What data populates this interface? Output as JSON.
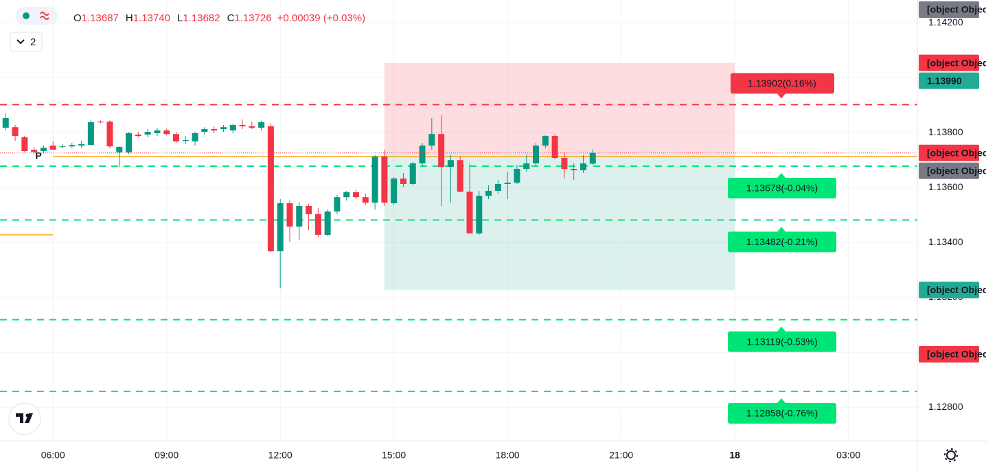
{
  "header": {
    "ohlc": [
      {
        "key": "O",
        "value": "1.13687"
      },
      {
        "key": "H",
        "value": "1.13740"
      },
      {
        "key": "L",
        "value": "1.13682"
      },
      {
        "key": "C",
        "value": "1.13726"
      }
    ],
    "change": "+0.00039 (+0.03%)",
    "collapse_count": "2"
  },
  "chart_data": {
    "type": "candlestick",
    "xlim": [
      4.6,
      28.82
    ],
    "ylim": [
      1.12678,
      1.14283
    ],
    "xticks": [
      {
        "value": 6,
        "label": "06:00"
      },
      {
        "value": 9,
        "label": "09:00"
      },
      {
        "value": 12,
        "label": "12:00"
      },
      {
        "value": 15,
        "label": "15:00"
      },
      {
        "value": 18,
        "label": "18:00"
      },
      {
        "value": 21,
        "label": "21:00"
      },
      {
        "value": 24,
        "label": "18"
      },
      {
        "value": 27,
        "label": "03:00"
      }
    ],
    "yticks": [
      {
        "value": 1.128,
        "label": "1.12800"
      },
      {
        "value": 1.13,
        "label": "1.13000"
      },
      {
        "value": 1.132,
        "label": "1.13200"
      },
      {
        "value": 1.134,
        "label": "1.13400"
      },
      {
        "value": 1.136,
        "label": "1.13600"
      },
      {
        "value": 1.138,
        "label": "1.13800"
      },
      {
        "value": 1.14,
        "label": "1.14000"
      },
      {
        "value": 1.142,
        "label": "1.14200"
      }
    ],
    "grid": true,
    "up_color": "#089981",
    "down_color": "#f23645",
    "x": [
      4.75,
      5,
      5.25,
      5.5,
      5.75,
      6,
      6.25,
      6.5,
      6.75,
      7,
      7.25,
      7.5,
      7.75,
      8,
      8.25,
      8.5,
      8.75,
      9,
      9.25,
      9.5,
      9.75,
      10,
      10.25,
      10.5,
      10.75,
      11,
      11.25,
      11.5,
      11.75,
      12,
      12.25,
      12.5,
      12.75,
      13,
      13.25,
      13.5,
      13.75,
      14,
      14.25,
      14.5,
      14.75,
      15,
      15.25,
      15.5,
      15.75,
      16,
      16.25,
      16.5,
      16.75,
      17,
      17.25,
      17.5,
      17.75,
      18,
      18.25,
      18.5,
      18.75,
      19,
      19.25,
      19.5,
      19.75,
      20,
      20.25
    ],
    "open": [
      1.13818,
      1.1382,
      1.13783,
      1.13738,
      1.13733,
      1.13753,
      1.13748,
      1.1375,
      1.13753,
      1.13755,
      1.1384,
      1.1384,
      1.13728,
      1.13728,
      1.13793,
      1.13793,
      1.13798,
      1.13808,
      1.13795,
      1.1377,
      1.13768,
      1.13803,
      1.13813,
      1.13813,
      1.13808,
      1.13828,
      1.13823,
      1.13818,
      1.13823,
      1.13368,
      1.13543,
      1.13458,
      1.13533,
      1.13503,
      1.13428,
      1.13513,
      1.13565,
      1.13583,
      1.13565,
      1.13545,
      1.13713,
      1.13543,
      1.13633,
      1.13613,
      1.13688,
      1.13753,
      1.13795,
      1.13675,
      1.137,
      1.13585,
      1.13433,
      1.1357,
      1.13588,
      1.13613,
      1.13618,
      1.13668,
      1.13688,
      1.13753,
      1.13788,
      1.13708,
      1.13668,
      1.13663,
      1.13687
    ],
    "high": [
      1.1387,
      1.13828,
      1.13788,
      1.13748,
      1.13753,
      1.1377,
      1.13758,
      1.13763,
      1.1377,
      1.13845,
      1.13845,
      1.13845,
      1.1375,
      1.13803,
      1.13803,
      1.13813,
      1.13818,
      1.13815,
      1.13803,
      1.13788,
      1.13803,
      1.1382,
      1.13823,
      1.13828,
      1.13833,
      1.13848,
      1.1384,
      1.13843,
      1.13833,
      1.13558,
      1.13553,
      1.13548,
      1.1354,
      1.13525,
      1.1352,
      1.13573,
      1.13588,
      1.13593,
      1.13578,
      1.13718,
      1.13738,
      1.13638,
      1.13653,
      1.13693,
      1.13763,
      1.13853,
      1.13863,
      1.1372,
      1.13713,
      1.13688,
      1.13588,
      1.13608,
      1.13628,
      1.13658,
      1.13683,
      1.1372,
      1.13763,
      1.1379,
      1.13793,
      1.13728,
      1.13688,
      1.13718,
      1.1374
    ],
    "low": [
      1.13808,
      1.1377,
      1.13728,
      1.13723,
      1.13725,
      1.13738,
      1.13743,
      1.13743,
      1.13745,
      1.13753,
      1.13833,
      1.13743,
      1.13675,
      1.13723,
      1.13783,
      1.13783,
      1.13788,
      1.1379,
      1.13763,
      1.13758,
      1.13753,
      1.13793,
      1.13798,
      1.13803,
      1.13798,
      1.13813,
      1.13813,
      1.13808,
      1.13365,
      1.13233,
      1.13403,
      1.13408,
      1.13445,
      1.1342,
      1.13423,
      1.13503,
      1.13553,
      1.13558,
      1.13538,
      1.1352,
      1.13533,
      1.13538,
      1.13603,
      1.13608,
      1.13678,
      1.13738,
      1.13533,
      1.13545,
      1.13583,
      1.13433,
      1.13428,
      1.13558,
      1.13578,
      1.13558,
      1.13613,
      1.13658,
      1.13678,
      1.13743,
      1.13703,
      1.13633,
      1.13628,
      1.13653,
      1.13682
    ],
    "close": [
      1.13853,
      1.13788,
      1.13733,
      1.1373,
      1.13745,
      1.13738,
      1.1375,
      1.13755,
      1.13758,
      1.13838,
      1.13838,
      1.1375,
      1.13748,
      1.13798,
      1.13788,
      1.13803,
      1.13808,
      1.13795,
      1.13768,
      1.13773,
      1.13798,
      1.13813,
      1.13808,
      1.1382,
      1.13828,
      1.13823,
      1.13818,
      1.13838,
      1.13368,
      1.13543,
      1.13458,
      1.13533,
      1.13503,
      1.13428,
      1.13513,
      1.13565,
      1.13583,
      1.13565,
      1.13545,
      1.13713,
      1.13545,
      1.13633,
      1.13613,
      1.13688,
      1.13753,
      1.13795,
      1.13675,
      1.137,
      1.13585,
      1.13433,
      1.1357,
      1.13588,
      1.13613,
      1.13618,
      1.13668,
      1.13688,
      1.13753,
      1.13788,
      1.13708,
      1.13668,
      1.13663,
      1.13688,
      1.13726
    ],
    "levels": [
      {
        "value": 1.13902,
        "label": "1.13902(0.16%)",
        "color": "#f23645"
      },
      {
        "value": 1.13678,
        "label": "1.13678(-0.04%)",
        "color": "#00e676"
      },
      {
        "value": 1.13482,
        "label": "1.13482(-0.21%)",
        "color": "#00e676"
      },
      {
        "value": 1.13119,
        "label": "1.13119(-0.53%)",
        "color": "#00e676"
      },
      {
        "value": 1.12858,
        "label": "1.12858(-0.76%)",
        "color": "#00e676"
      }
    ],
    "position": {
      "start": 14.75,
      "end": 24,
      "entry": 1.13719,
      "stop": 1.14054,
      "target": 1.13227
    },
    "pivot": {
      "label": "P",
      "value": 1.13713,
      "start": 6,
      "color": "#f7a21b"
    },
    "prev_level": {
      "value": 1.13428,
      "end": 6,
      "color": "#f7a21b"
    },
    "price_labels": [
      {
        "value": 1.14248,
        "color": "#787b86"
      },
      {
        "value": 1.14054,
        "color": "#f23645"
      },
      {
        "value": 1.1399,
        "label": "1.13990",
        "color": "#22ab94"
      },
      {
        "value": 1.13726,
        "color": "#f23645"
      },
      {
        "value": 1.13719,
        "color": "#787b86"
      },
      {
        "value": 1.13227,
        "color": "#22ab94"
      },
      {
        "value": 1.12993,
        "color": "#f23645"
      }
    ]
  }
}
